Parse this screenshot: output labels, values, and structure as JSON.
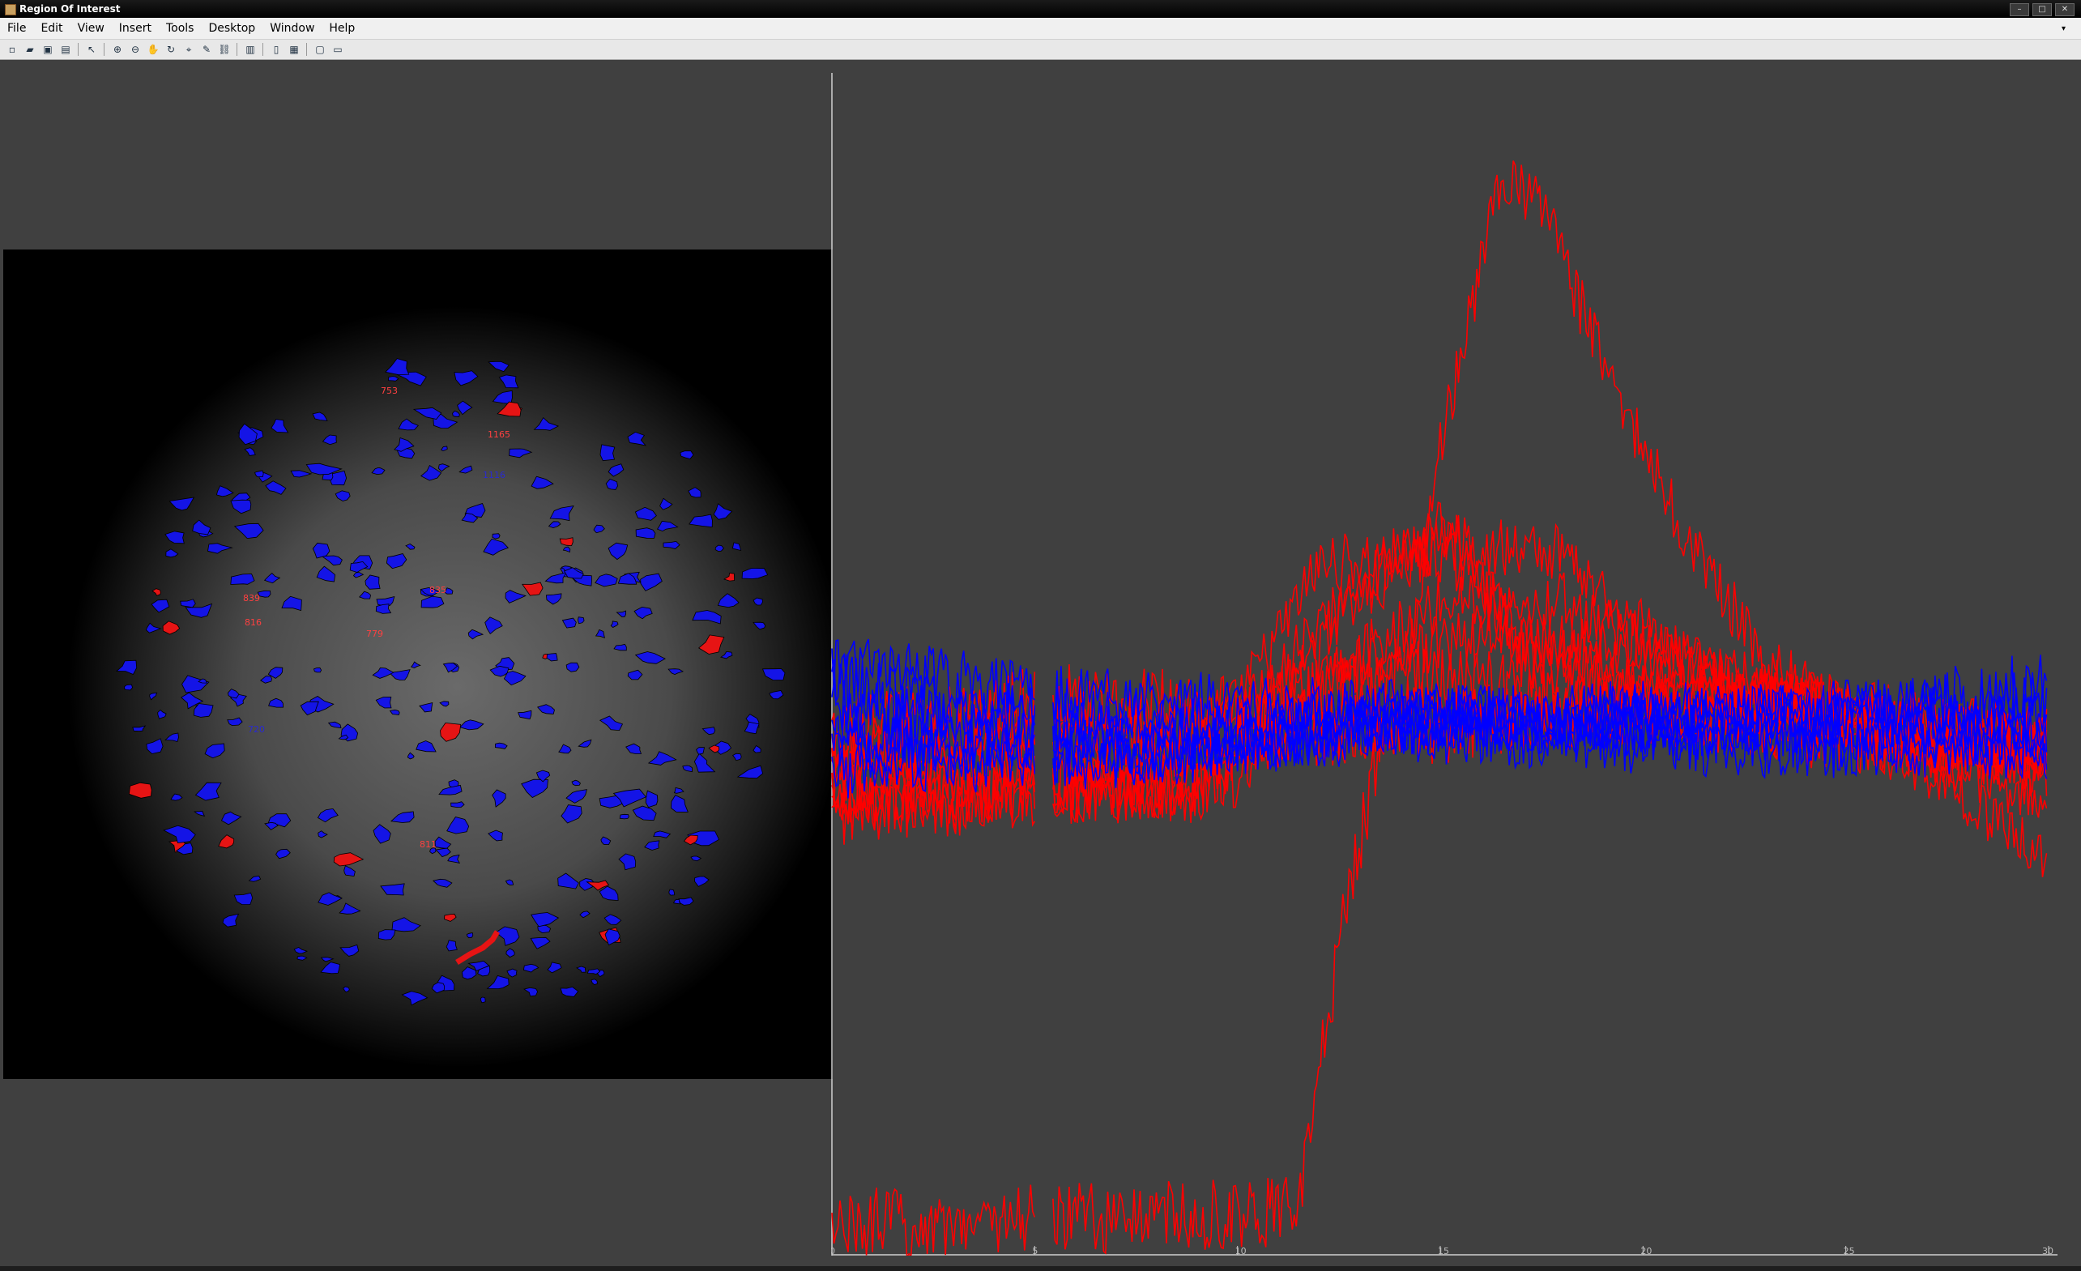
{
  "window": {
    "title": "Region Of Interest",
    "controls": [
      "–",
      "□",
      "✕"
    ]
  },
  "menu": [
    "File",
    "Edit",
    "View",
    "Insert",
    "Tools",
    "Desktop",
    "Window",
    "Help"
  ],
  "toolbar": {
    "icons": [
      "new-file-icon",
      "open-file-icon",
      "save-icon",
      "print-icon",
      "pointer-icon",
      "zoom-in-icon",
      "zoom-out-icon",
      "pan-icon",
      "rotate-icon",
      "data-cursor-icon",
      "brush-icon",
      "link-icon",
      "colorbar-icon",
      "legend-icon",
      "hide-plot-tools-icon",
      "show-plot-tools-icon"
    ]
  },
  "roi_image": {
    "labels": [
      "753",
      "1165",
      "1116",
      "835",
      "839",
      "816",
      "779",
      "720",
      "811"
    ],
    "colors": {
      "unselected": "#1414e6",
      "selected": "#e61414"
    }
  },
  "chart_data": {
    "type": "line",
    "x_ticks": [
      "0",
      "5",
      "10",
      "15",
      "20",
      "25",
      "30"
    ],
    "xlim": [
      0,
      30
    ],
    "gap": [
      5,
      5.4
    ],
    "colors": {
      "red": "#ff0000",
      "blue": "#0000ff"
    },
    "series": [
      {
        "color": "red",
        "keys": [
          [
            0,
            -8
          ],
          [
            8,
            -6
          ],
          [
            9.5,
            -2
          ],
          [
            11,
            14
          ],
          [
            12,
            26
          ],
          [
            15,
            28
          ],
          [
            16,
            24
          ],
          [
            17,
            10
          ],
          [
            30,
            -4
          ]
        ],
        "noise": 5
      },
      {
        "color": "red",
        "keys": [
          [
            0,
            -12
          ],
          [
            8,
            -12
          ],
          [
            10,
            -6
          ],
          [
            13,
            22
          ],
          [
            15,
            34
          ],
          [
            17,
            14
          ],
          [
            20,
            6
          ],
          [
            30,
            -6
          ]
        ],
        "noise": 5
      },
      {
        "color": "red",
        "keys": [
          [
            0,
            -10
          ],
          [
            9,
            -10
          ],
          [
            12,
            16
          ],
          [
            15,
            30
          ],
          [
            18,
            28
          ],
          [
            20,
            16
          ],
          [
            22,
            4
          ],
          [
            30,
            -4
          ]
        ],
        "noise": 5
      },
      {
        "color": "red",
        "keys": [
          [
            0,
            -14
          ],
          [
            9,
            -12
          ],
          [
            12,
            6
          ],
          [
            15,
            20
          ],
          [
            18,
            20
          ],
          [
            21,
            10
          ],
          [
            23,
            4
          ],
          [
            26,
            -2
          ],
          [
            30,
            -14
          ]
        ],
        "noise": 5
      },
      {
        "color": "red",
        "keys": [
          [
            0,
            -6
          ],
          [
            14,
            -2
          ],
          [
            15,
            46
          ],
          [
            16.5,
            90
          ],
          [
            17.5,
            86
          ],
          [
            19,
            60
          ],
          [
            21,
            32
          ],
          [
            23,
            10
          ],
          [
            26,
            -4
          ],
          [
            30,
            -6
          ]
        ],
        "noise": 5
      },
      {
        "color": "red",
        "keys": [
          [
            0,
            -16
          ],
          [
            10,
            -10
          ],
          [
            13,
            10
          ],
          [
            16,
            14
          ],
          [
            20,
            12
          ],
          [
            24,
            4
          ],
          [
            27,
            -8
          ],
          [
            29,
            -18
          ],
          [
            30,
            -22
          ]
        ],
        "noise": 5
      },
      {
        "color": "red",
        "keys": [
          [
            0,
            -84
          ],
          [
            11.5,
            -82
          ],
          [
            12.5,
            -38
          ],
          [
            13.5,
            -4
          ],
          [
            16,
            0
          ],
          [
            20,
            2
          ],
          [
            25,
            2
          ],
          [
            30,
            -4
          ]
        ],
        "noise": 6
      },
      {
        "color": "red",
        "keys": [
          [
            0,
            -2
          ],
          [
            6,
            4
          ],
          [
            10,
            2
          ],
          [
            14,
            8
          ],
          [
            18,
            4
          ],
          [
            22,
            0
          ],
          [
            26,
            -4
          ],
          [
            30,
            -6
          ]
        ],
        "noise": 6
      },
      {
        "color": "red",
        "keys": [
          [
            0,
            -4
          ],
          [
            6,
            -2
          ],
          [
            10,
            0
          ],
          [
            14,
            2
          ],
          [
            20,
            0
          ],
          [
            26,
            -2
          ],
          [
            30,
            -8
          ]
        ],
        "noise": 5
      },
      {
        "color": "blue",
        "keys": [
          [
            0,
            6
          ],
          [
            8,
            -4
          ],
          [
            14,
            0
          ],
          [
            20,
            0
          ],
          [
            25,
            0
          ],
          [
            30,
            6
          ]
        ],
        "noise": 6
      },
      {
        "color": "blue",
        "keys": [
          [
            0,
            -4
          ],
          [
            8,
            -6
          ],
          [
            14,
            0
          ],
          [
            20,
            -2
          ],
          [
            30,
            -4
          ]
        ],
        "noise": 5
      },
      {
        "color": "blue",
        "keys": [
          [
            0,
            2
          ],
          [
            8,
            0
          ],
          [
            14,
            0
          ],
          [
            20,
            0
          ],
          [
            30,
            0
          ]
        ],
        "noise": 5
      },
      {
        "color": "blue",
        "keys": [
          [
            0,
            -8
          ],
          [
            8,
            -6
          ],
          [
            14,
            -2
          ],
          [
            20,
            -4
          ],
          [
            30,
            -6
          ]
        ],
        "noise": 5
      },
      {
        "color": "blue",
        "keys": [
          [
            0,
            10
          ],
          [
            6,
            4
          ],
          [
            14,
            2
          ],
          [
            20,
            0
          ],
          [
            30,
            4
          ]
        ],
        "noise": 5
      },
      {
        "color": "blue",
        "keys": [
          [
            0,
            -2
          ],
          [
            8,
            -4
          ],
          [
            14,
            0
          ],
          [
            20,
            2
          ],
          [
            30,
            -2
          ]
        ],
        "noise": 5
      }
    ]
  }
}
